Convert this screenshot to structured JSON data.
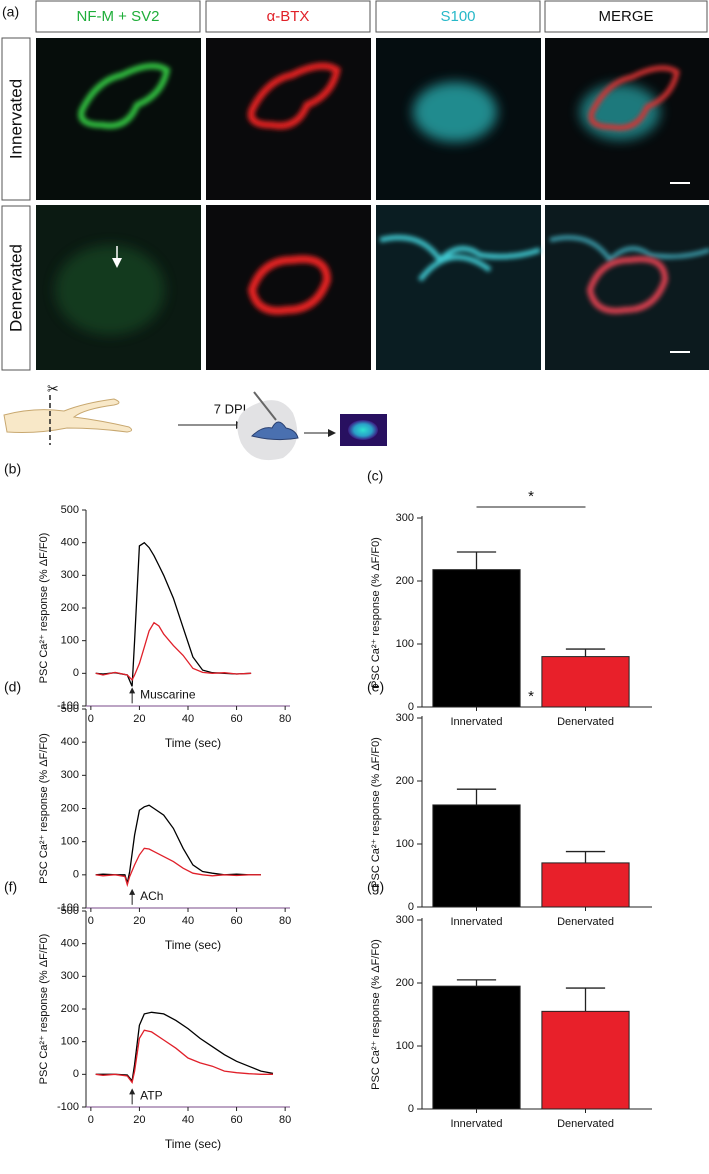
{
  "panel_labels": [
    "(a)",
    "(b)",
    "(c)",
    "(d)",
    "(e)",
    "(f)",
    "(g)"
  ],
  "image_panel": {
    "columns": [
      "NF-M + SV2",
      "α-BTX",
      "S100",
      "MERGE"
    ],
    "rows": [
      "Innervated",
      "Denervated"
    ]
  },
  "schematic": {
    "label": "7 DPI"
  },
  "chart_data": [
    {
      "type": "line",
      "x": [
        2,
        5,
        10,
        15,
        17,
        18,
        20,
        22,
        24,
        26,
        28,
        30,
        34,
        38,
        42,
        46,
        50,
        55,
        60,
        66
      ],
      "series": [
        {
          "color": "#000000",
          "values": [
            0,
            -2,
            2,
            -5,
            -40,
            100,
            390,
            400,
            385,
            360,
            330,
            300,
            230,
            140,
            50,
            10,
            2,
            0,
            -2,
            0
          ]
        },
        {
          "color": "#e0202a",
          "values": [
            0,
            -5,
            3,
            -5,
            -20,
            -5,
            30,
            80,
            130,
            155,
            145,
            120,
            85,
            55,
            15,
            3,
            0,
            2,
            -2,
            0
          ]
        }
      ],
      "xlabel": "Time (sec)",
      "ylabel": "PSC Ca²⁺ response (% ΔF/F0)",
      "annotation": "Muscarine",
      "xlim": [
        -2,
        82
      ],
      "ylim": [
        -100,
        500
      ],
      "xticks": [
        0,
        20,
        40,
        60,
        80
      ],
      "yticks": [
        -100,
        0,
        100,
        200,
        300,
        400,
        500
      ]
    },
    {
      "type": "bar",
      "categories": [
        "Innervated",
        "Denervated"
      ],
      "values": [
        218,
        80
      ],
      "errors": [
        28,
        12
      ],
      "colors": [
        "#000000",
        "#e8202a"
      ],
      "ylabel": "PSC Ca²⁺ response (% ΔF/F0)",
      "significance": "*",
      "ylim": [
        0,
        300
      ],
      "yticks": [
        0,
        100,
        200,
        300
      ]
    },
    {
      "type": "line",
      "x": [
        2,
        5,
        10,
        14,
        15,
        16,
        18,
        20,
        22,
        24,
        26,
        30,
        34,
        38,
        42,
        46,
        50,
        55,
        60,
        65,
        70
      ],
      "series": [
        {
          "color": "#000000",
          "values": [
            0,
            2,
            0,
            0,
            -25,
            10,
            120,
            195,
            205,
            210,
            200,
            180,
            140,
            80,
            30,
            10,
            5,
            0,
            2,
            0,
            0
          ]
        },
        {
          "color": "#e0202a",
          "values": [
            0,
            -3,
            0,
            -5,
            -30,
            -5,
            30,
            60,
            80,
            78,
            70,
            55,
            40,
            20,
            5,
            0,
            -3,
            0,
            -2,
            0,
            0
          ]
        }
      ],
      "xlabel": "Time (sec)",
      "ylabel": "PSC Ca²⁺ response (% ΔF/F0)",
      "annotation": "ACh",
      "xlim": [
        -2,
        82
      ],
      "ylim": [
        -100,
        500
      ],
      "xticks": [
        0,
        20,
        40,
        60,
        80
      ],
      "yticks": [
        -100,
        0,
        100,
        200,
        300,
        400,
        500
      ]
    },
    {
      "type": "bar",
      "categories": [
        "Innervated",
        "Denervated"
      ],
      "values": [
        162,
        70
      ],
      "errors": [
        25,
        18
      ],
      "colors": [
        "#000000",
        "#e8202a"
      ],
      "ylabel": "PSC Ca²⁺ response (% ΔF/F0)",
      "significance": "*",
      "ylim": [
        0,
        300
      ],
      "yticks": [
        0,
        100,
        200,
        300
      ]
    },
    {
      "type": "line",
      "x": [
        2,
        5,
        10,
        15,
        17,
        18,
        20,
        22,
        25,
        30,
        35,
        40,
        45,
        50,
        55,
        60,
        65,
        70,
        75
      ],
      "series": [
        {
          "color": "#000000",
          "values": [
            0,
            0,
            0,
            -2,
            -20,
            30,
            150,
            185,
            190,
            185,
            165,
            140,
            110,
            85,
            60,
            40,
            25,
            10,
            3
          ]
        },
        {
          "color": "#e0202a",
          "values": [
            0,
            -3,
            0,
            -5,
            -25,
            10,
            110,
            135,
            130,
            105,
            80,
            50,
            35,
            25,
            10,
            5,
            2,
            0,
            0
          ]
        }
      ],
      "xlabel": "Time (sec)",
      "ylabel": "PSC Ca²⁺ response (% ΔF/F0)",
      "annotation": "ATP",
      "xlim": [
        -2,
        82
      ],
      "ylim": [
        -100,
        500
      ],
      "xticks": [
        0,
        20,
        40,
        60,
        80
      ],
      "yticks": [
        -100,
        0,
        100,
        200,
        300,
        400,
        500
      ]
    },
    {
      "type": "bar",
      "categories": [
        "Innervated",
        "Denervated"
      ],
      "values": [
        195,
        155
      ],
      "errors": [
        10,
        37
      ],
      "colors": [
        "#000000",
        "#e8202a"
      ],
      "ylabel": "PSC Ca²⁺ response (% ΔF/F0)",
      "ylim": [
        0,
        300
      ],
      "yticks": [
        0,
        100,
        200,
        300
      ]
    }
  ]
}
